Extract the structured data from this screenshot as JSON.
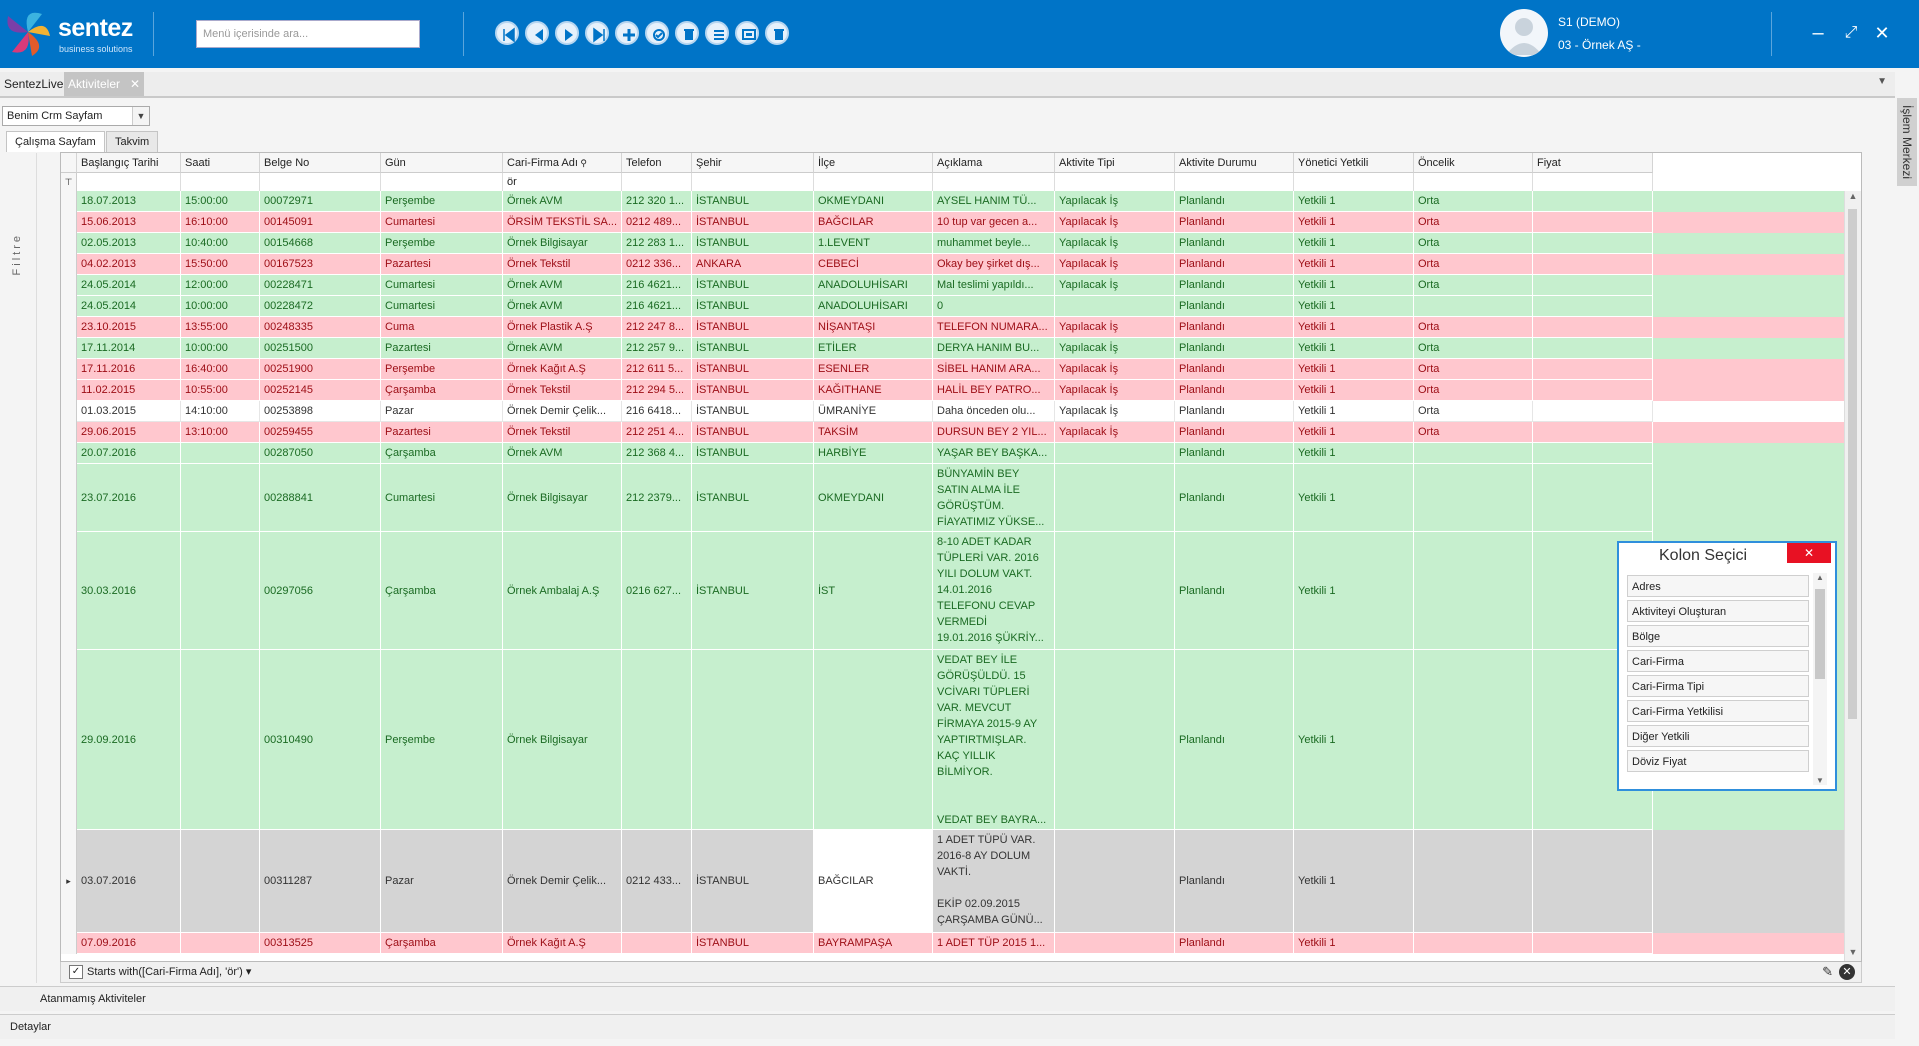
{
  "app": {
    "logo_name": "sentez",
    "logo_sub": "business solutions"
  },
  "search": {
    "placeholder": "Menü içerisinde ara..."
  },
  "toolbar": [
    {
      "name": "first-record-icon"
    },
    {
      "name": "prev-record-icon"
    },
    {
      "name": "next-record-icon"
    },
    {
      "name": "last-record-icon"
    },
    {
      "name": "add-record-icon"
    },
    {
      "name": "approve-icon"
    },
    {
      "name": "delete-icon"
    },
    {
      "name": "list-icon"
    },
    {
      "name": "screen-icon"
    },
    {
      "name": "trash-icon"
    }
  ],
  "user": {
    "name": "S1 (DEMO)",
    "company": "03 - Örnek AŞ -"
  },
  "window": {
    "minimize": "–",
    "maximize": "⤢",
    "close": "✕"
  },
  "tabs": [
    {
      "label": "SentezLive"
    },
    {
      "label": "Aktiviteler"
    }
  ],
  "right_panel": {
    "label": "İşlem Merkezi"
  },
  "page_combo": "Benim Crm Sayfam",
  "subtabs": [
    "Çalışma Sayfam",
    "Takvim"
  ],
  "filter_strip_label": "Filtre",
  "columns": [
    "Başlangıç Tarihi",
    "Saati",
    "Belge No",
    "Gün",
    "Cari-Firma Adı",
    "Telefon",
    "Şehir",
    "İlçe",
    "Açıklama",
    "Aktivite Tipi",
    "Aktivite Durumu",
    "Yönetici Yetkili",
    "Öncelik",
    "Fiyat"
  ],
  "filter_value": "ör",
  "rows": [
    {
      "color": "green",
      "cells": [
        "18.07.2013",
        "15:00:00",
        "00072971",
        "Perşembe",
        "Örnek AVM",
        "212 320 1...",
        "İSTANBUL",
        "OKMEYDANI",
        "AYSEL HANIM TÜ...",
        "Yapılacak İş",
        "Planlandı",
        "Yetkili 1",
        "Orta",
        ""
      ]
    },
    {
      "color": "red",
      "cells": [
        "15.06.2013",
        "16:10:00",
        "00145091",
        "Cumartesi",
        "ÖRSİM TEKSTİL SA...",
        "0212 489...",
        "İSTANBUL",
        "BAĞCILAR",
        "10 tup var gecen a...",
        "Yapılacak İş",
        "Planlandı",
        "Yetkili 1",
        "Orta",
        ""
      ]
    },
    {
      "color": "green",
      "cells": [
        "02.05.2013",
        "10:40:00",
        "00154668",
        "Perşembe",
        "Örnek Bilgisayar",
        "212 283 1...",
        "İSTANBUL",
        "1.LEVENT",
        "muhammet beyle...",
        "Yapılacak İş",
        "Planlandı",
        "Yetkili 1",
        "Orta",
        ""
      ]
    },
    {
      "color": "red",
      "cells": [
        "04.02.2013",
        "15:50:00",
        "00167523",
        "Pazartesi",
        "Örnek Tekstil",
        "0212 336...",
        "ANKARA",
        "CEBECİ",
        "Okay bey şirket dış...",
        "Yapılacak İş",
        "Planlandı",
        "Yetkili 1",
        "Orta",
        ""
      ]
    },
    {
      "color": "green",
      "cells": [
        "24.05.2014",
        "12:00:00",
        "00228471",
        "Cumartesi",
        "Örnek AVM",
        "216 4621...",
        "İSTANBUL",
        "ANADOLUHİSARI",
        "Mal teslimi yapıldı...",
        "Yapılacak İş",
        "Planlandı",
        "Yetkili 1",
        "Orta",
        ""
      ]
    },
    {
      "color": "green",
      "cells": [
        "24.05.2014",
        "10:00:00",
        "00228472",
        "Cumartesi",
        "Örnek AVM",
        "216 4621...",
        "İSTANBUL",
        "ANADOLUHİSARI",
        "0",
        "",
        "Planlandı",
        "Yetkili 1",
        "",
        ""
      ]
    },
    {
      "color": "red",
      "cells": [
        "23.10.2015",
        "13:55:00",
        "00248335",
        "Cuma",
        "Örnek Plastik A.Ş",
        "212 247 8...",
        "İSTANBUL",
        "NİŞANTAŞI",
        "TELEFON NUMARA...",
        "Yapılacak İş",
        "Planlandı",
        "Yetkili 1",
        "Orta",
        ""
      ]
    },
    {
      "color": "green",
      "cells": [
        "17.11.2014",
        "10:00:00",
        "00251500",
        "Pazartesi",
        "Örnek AVM",
        "212 257 9...",
        "İSTANBUL",
        "ETİLER",
        "DERYA HANIM BU...",
        "Yapılacak İş",
        "Planlandı",
        "Yetkili 1",
        "Orta",
        ""
      ]
    },
    {
      "color": "red",
      "cells": [
        "17.11.2016",
        "16:40:00",
        "00251900",
        "Perşembe",
        "Örnek Kağıt A.Ş",
        "212 611 5...",
        "İSTANBUL",
        "ESENLER",
        "SİBEL HANIM ARA...",
        "Yapılacak İş",
        "Planlandı",
        "Yetkili 1",
        "Orta",
        ""
      ]
    },
    {
      "color": "red",
      "cells": [
        "11.02.2015",
        "10:55:00",
        "00252145",
        "Çarşamba",
        "Örnek Tekstil",
        "212 294 5...",
        "İSTANBUL",
        "KAĞITHANE",
        "HALİL BEY PATRO...",
        "Yapılacak İş",
        "Planlandı",
        "Yetkili 1",
        "Orta",
        ""
      ]
    },
    {
      "color": "white",
      "cells": [
        "01.03.2015",
        "14:10:00",
        "00253898",
        "Pazar",
        "Örnek Demir Çelik...",
        "216 6418...",
        "İSTANBUL",
        "ÜMRANİYE",
        "Daha önceden olu...",
        "Yapılacak İş",
        "Planlandı",
        "Yetkili 1",
        "Orta",
        ""
      ]
    },
    {
      "color": "red",
      "cells": [
        "29.06.2015",
        "13:10:00",
        "00259455",
        "Pazartesi",
        "Örnek Tekstil",
        "212 251 4...",
        "İSTANBUL",
        "TAKSİM",
        "DURSUN BEY 2 YIL...",
        "Yapılacak İş",
        "Planlandı",
        "Yetkili 1",
        "Orta",
        ""
      ]
    },
    {
      "color": "green",
      "cells": [
        "20.07.2016",
        "",
        "00287050",
        "Çarşamba",
        "Örnek AVM",
        "212 368 4...",
        "İSTANBUL",
        "HARBİYE",
        "YAŞAR BEY BAŞKA...",
        "",
        "Planlandı",
        "Yetkili 1",
        "",
        ""
      ]
    },
    {
      "color": "green",
      "cells": [
        "23.07.2016",
        "",
        "00288841",
        "Cumartesi",
        "Örnek Bilgisayar",
        "212 2379...",
        "İSTANBUL",
        "OKMEYDANI",
        "BÜNYAMİN BEY\nSATIN ALMA İLE\nGÖRÜŞTÜM.\nFİAYATIMIZ YÜKSE...",
        "",
        "Planlandı",
        "Yetkili 1",
        "",
        ""
      ]
    },
    {
      "color": "green",
      "cells": [
        "30.03.2016",
        "",
        "00297056",
        "Çarşamba",
        "Örnek Ambalaj A.Ş",
        "0216 627...",
        "İSTANBUL",
        "İST",
        "8-10 ADET KADAR\nTÜPLERİ VAR. 2016\nYILI DOLUM VAKT.\n14.01.2016\nTELEFONU CEVAP\nVERMEDİ\n19.01.2016 ŞÜKRİY...",
        "",
        "Planlandı",
        "Yetkili 1",
        "",
        ""
      ]
    },
    {
      "color": "green",
      "cells": [
        "29.09.2016",
        "",
        "00310490",
        "Perşembe",
        "Örnek Bilgisayar",
        "",
        "",
        "",
        "VEDAT BEY İLE\nGÖRÜŞÜLDÜ. 15\nVCİVARI TÜPLERİ\nVAR.  MEVCUT\nFİRMAYA 2015-9 AY\nYAPTIRTMIŞLAR.\nKAÇ YILLIK\nBİLMİYOR.\n\n\nVEDAT BEY BAYRA...",
        "",
        "Planlandı",
        "Yetkili 1",
        "",
        ""
      ]
    },
    {
      "color": "grey",
      "cells": [
        "03.07.2016",
        "",
        "00311287",
        "Pazar",
        "Örnek Demir Çelik...",
        "0212 433...",
        "İSTANBUL",
        "BAĞCILAR",
        "1 ADET TÜPÜ VAR.\n2016-8 AY DOLUM\nVAKTİ.\n\nEKİP 02.09.2015\nÇARŞAMBA GÜNÜ...",
        "",
        "Planlandı",
        "Yetkili 1",
        "",
        ""
      ]
    },
    {
      "color": "red",
      "cells": [
        "07.09.2016",
        "",
        "00313525",
        "Çarşamba",
        "Örnek Kağıt A.Ş",
        "",
        "İSTANBUL",
        "BAYRAMPAŞA",
        "1 ADET TÜP 2015 1...",
        "",
        "Planlandı",
        "Yetkili 1",
        "",
        ""
      ]
    }
  ],
  "filter_bar": {
    "expression": "Starts with([Cari-Firma Adı], 'ör')"
  },
  "bottom": {
    "unassigned": "Atanmamış Aktiviteler",
    "details": "Detaylar"
  },
  "kolon_secici": {
    "title": "Kolon Seçici",
    "items": [
      "Adres",
      "Aktiviteyi Oluşturan",
      "Bölge",
      "Cari-Firma",
      "Cari-Firma Tipi",
      "Cari-Firma Yetkilisi",
      "Diğer Yetkili",
      "Döviz Fiyat"
    ]
  }
}
